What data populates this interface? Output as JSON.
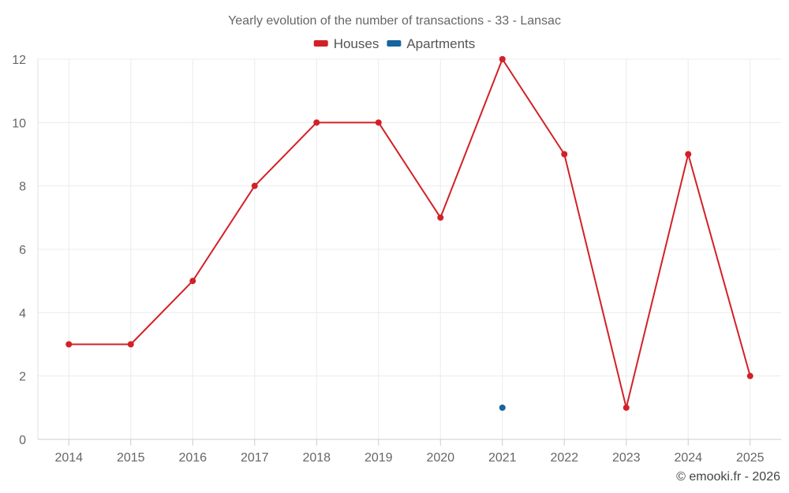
{
  "chart_data": {
    "type": "line",
    "title": "Yearly evolution of the number of transactions - 33 - Lansac",
    "categories": [
      "2014",
      "2015",
      "2016",
      "2017",
      "2018",
      "2019",
      "2020",
      "2021",
      "2022",
      "2023",
      "2024",
      "2025"
    ],
    "series": [
      {
        "name": "Houses",
        "color": "#d32027",
        "values": [
          3,
          3,
          5,
          8,
          10,
          10,
          7,
          12,
          9,
          1,
          9,
          2
        ]
      },
      {
        "name": "Apartments",
        "color": "#1565a0",
        "values": [
          null,
          null,
          null,
          null,
          null,
          null,
          null,
          1,
          null,
          null,
          null,
          null
        ]
      }
    ],
    "ylim": [
      0,
      12
    ],
    "yticks": [
      0,
      2,
      4,
      6,
      8,
      10,
      12
    ],
    "xlabel": "",
    "ylabel": "",
    "grid": true,
    "legend": "top-center",
    "credit": "© emooki.fr - 2026"
  }
}
